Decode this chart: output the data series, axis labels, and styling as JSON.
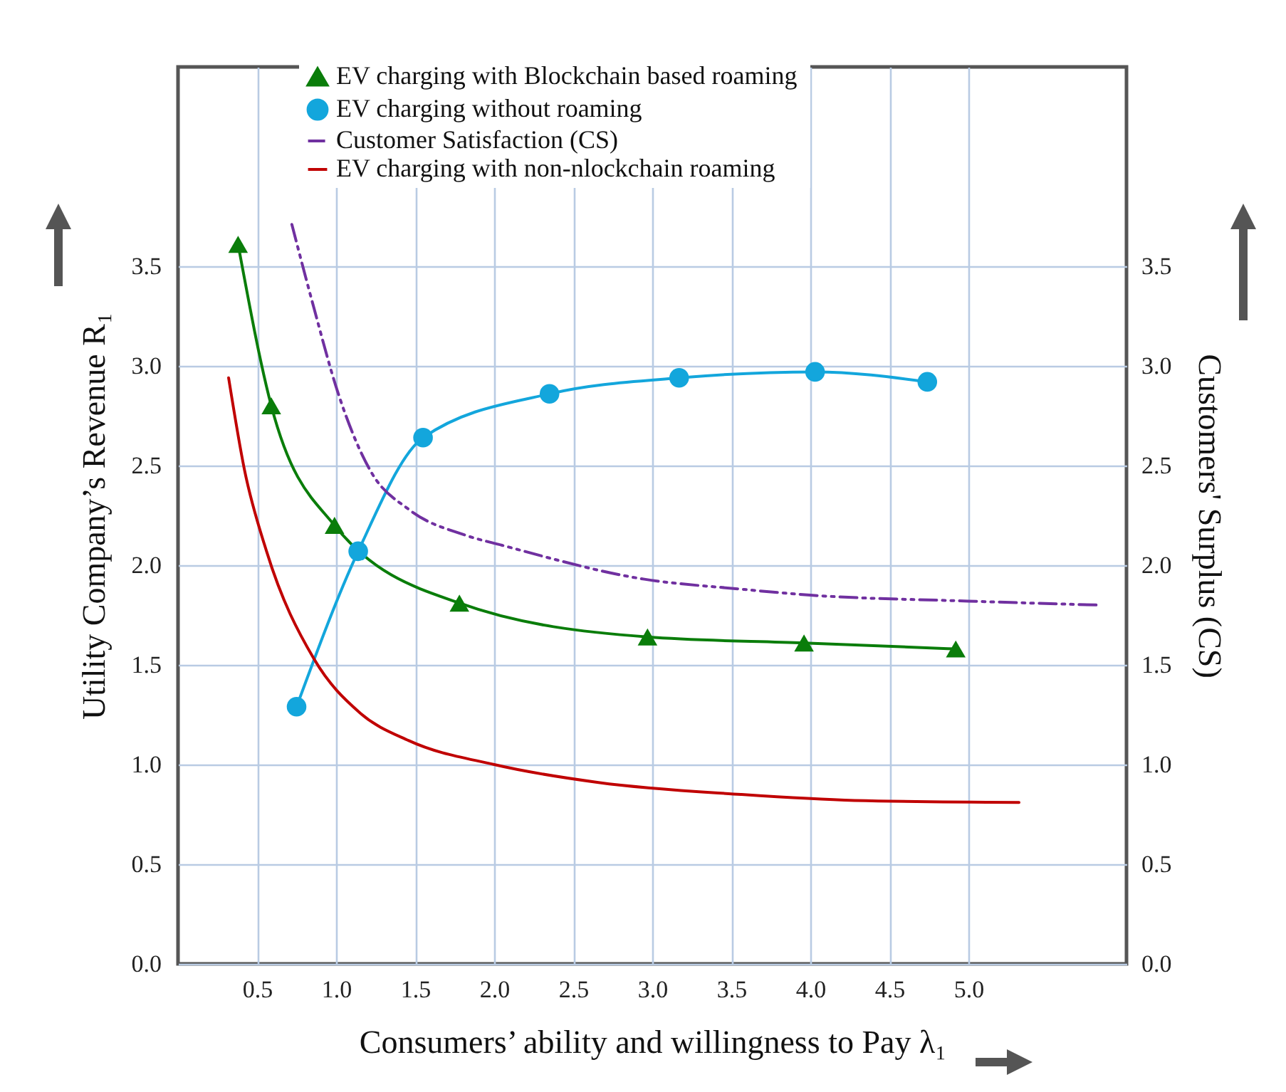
{
  "chart_data": {
    "type": "line",
    "xlabel": "Consumers’ ability and willingness  to Pay λ₁",
    "ylabel": "Utility  Company’s Revenue R₁",
    "y2label": "Customers' Surplus (CS)",
    "xlim": [
      0,
      6
    ],
    "xticks": [
      0.5,
      {
        "value": 1,
        "label": "1.0"
      },
      1.5,
      {
        "value": 2,
        "label": "2.0"
      },
      2.5,
      {
        "value": 3,
        "label": "3.0"
      },
      3.5,
      {
        "value": 4,
        "label": "4.0"
      },
      4.5,
      {
        "value": 5,
        "label": "5.0"
      }
    ],
    "ylim": [
      0,
      4.5
    ],
    "yticks": [
      {
        "value": 0,
        "label": "0.0"
      },
      0.5,
      {
        "value": 1,
        "label": "1.0"
      },
      1.5,
      {
        "value": 2,
        "label": "2.0"
      },
      2.5,
      {
        "value": 3,
        "label": "3.0"
      },
      3.5
    ],
    "y2lim": [
      0,
      4.5
    ],
    "y2ticks": [
      {
        "value": 0,
        "label": "0.0"
      },
      0.5,
      {
        "value": 1,
        "label": "1.0"
      },
      1.5,
      {
        "value": 2,
        "label": "2.0"
      },
      2.5,
      {
        "value": 3,
        "label": "3.0"
      },
      3.5
    ],
    "grid": true,
    "legend": "top",
    "series": [
      {
        "name": "EV charging  with Blockchain based roaming",
        "color": "#0a7d0a",
        "marker": "triangle",
        "line_style": "solid",
        "x": [
          0.38,
          0.59,
          0.99,
          1.78,
          2.97,
          3.96,
          4.92
        ],
        "values": [
          3.61,
          2.8,
          2.2,
          1.81,
          1.64,
          1.61,
          1.58
        ]
      },
      {
        "name": "EV charging  without roaming",
        "color": "#13a6dc",
        "marker": "circle",
        "line_style": "solid",
        "x": [
          0.75,
          1.14,
          1.55,
          2.35,
          3.17,
          4.03,
          4.74
        ],
        "values": [
          1.29,
          2.07,
          2.64,
          2.86,
          2.94,
          2.97,
          2.92
        ]
      },
      {
        "name": "Customer Satisfaction (CS)",
        "color": "#7030a0",
        "marker": "none",
        "line_style": "dashdotdot",
        "axis": "y2",
        "x": [
          0.72,
          0.86,
          1.01,
          1.22,
          1.46,
          1.82,
          2.05,
          2.95,
          3.56,
          4.0,
          5.0,
          5.83
        ],
        "values": [
          3.71,
          3.29,
          2.87,
          2.47,
          2.28,
          2.15,
          2.1,
          1.93,
          1.88,
          1.85,
          1.82,
          1.8
        ]
      },
      {
        "name": "EV charging  with non-nlockchain roaming",
        "color": "#c00000",
        "marker": "none",
        "line_style": "solid",
        "x": [
          0.32,
          0.42,
          0.56,
          0.86,
          1.15,
          1.46,
          2.0,
          2.66,
          3.56,
          4.28,
          5.32
        ],
        "values": [
          2.94,
          2.48,
          2.07,
          1.53,
          1.26,
          1.12,
          1.0,
          0.91,
          0.85,
          0.82,
          0.81
        ]
      }
    ]
  }
}
